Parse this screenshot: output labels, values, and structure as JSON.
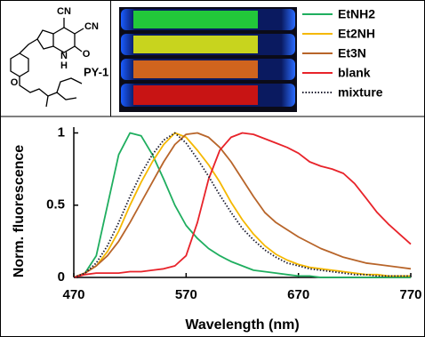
{
  "structure": {
    "label": "PY-1",
    "atoms": [
      "CN",
      "CN",
      "N",
      "H",
      "O",
      "O"
    ]
  },
  "chart_data": {
    "type": "line",
    "xlabel": "Wavelength (nm)",
    "ylabel": "Norm. fluorescence",
    "x": [
      470,
      480,
      490,
      500,
      510,
      520,
      530,
      540,
      550,
      560,
      570,
      580,
      590,
      600,
      610,
      620,
      630,
      640,
      650,
      660,
      670,
      680,
      690,
      700,
      710,
      720,
      730,
      740,
      750,
      760,
      770
    ],
    "xlim": [
      470,
      770
    ],
    "xticks": [
      470,
      570,
      670,
      770
    ],
    "ylim": [
      0,
      1.04
    ],
    "yticks": [
      0,
      0.5,
      1
    ],
    "legend": "top-right",
    "series": [
      {
        "name": "EtNH2",
        "color": "#1fae5f",
        "line_style": "solid",
        "values": [
          0,
          0.03,
          0.15,
          0.5,
          0.85,
          1.0,
          0.98,
          0.85,
          0.68,
          0.5,
          0.36,
          0.27,
          0.2,
          0.15,
          0.11,
          0.08,
          0.05,
          0.04,
          0.03,
          0.02,
          0.01,
          0.01,
          0,
          0,
          0,
          0,
          0,
          0,
          0,
          0,
          0
        ]
      },
      {
        "name": "Et2NH",
        "color": "#f5b800",
        "line_style": "solid",
        "values": [
          0,
          0.03,
          0.08,
          0.18,
          0.32,
          0.5,
          0.66,
          0.8,
          0.92,
          1.0,
          0.97,
          0.88,
          0.78,
          0.66,
          0.52,
          0.4,
          0.3,
          0.22,
          0.16,
          0.12,
          0.09,
          0.07,
          0.06,
          0.05,
          0.04,
          0.03,
          0.02,
          0.02,
          0.01,
          0.01,
          0.01
        ]
      },
      {
        "name": "Et3N",
        "color": "#b8652a",
        "line_style": "solid",
        "values": [
          0,
          0.03,
          0.08,
          0.15,
          0.25,
          0.38,
          0.52,
          0.66,
          0.8,
          0.92,
          0.99,
          1.0,
          0.97,
          0.9,
          0.8,
          0.68,
          0.56,
          0.45,
          0.38,
          0.33,
          0.28,
          0.24,
          0.2,
          0.17,
          0.14,
          0.12,
          0.1,
          0.09,
          0.08,
          0.07,
          0.06
        ]
      },
      {
        "name": "blank",
        "color": "#e8232a",
        "line_style": "solid",
        "values": [
          0,
          0.02,
          0.03,
          0.03,
          0.03,
          0.04,
          0.04,
          0.05,
          0.06,
          0.08,
          0.15,
          0.38,
          0.68,
          0.88,
          0.97,
          1.0,
          0.99,
          0.96,
          0.93,
          0.9,
          0.86,
          0.8,
          0.77,
          0.75,
          0.72,
          0.65,
          0.55,
          0.45,
          0.37,
          0.3,
          0.23
        ]
      },
      {
        "name": "mixture",
        "color": "#1a1a2e",
        "line_style": "dotted",
        "values": [
          0,
          0.03,
          0.1,
          0.22,
          0.38,
          0.56,
          0.72,
          0.85,
          0.95,
          1.0,
          0.93,
          0.82,
          0.7,
          0.57,
          0.45,
          0.34,
          0.26,
          0.19,
          0.14,
          0.1,
          0.08,
          0.06,
          0.05,
          0.04,
          0.03,
          0.02,
          0.02,
          0.01,
          0.01,
          0.01,
          0.01
        ]
      }
    ]
  }
}
